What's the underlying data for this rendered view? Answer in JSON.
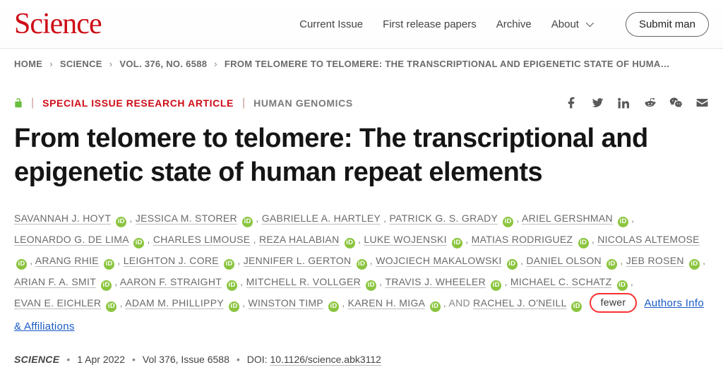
{
  "brand": "Science",
  "nav": {
    "current_issue": "Current Issue",
    "first_release": "First release papers",
    "archive": "Archive",
    "about": "About",
    "submit": "Submit man"
  },
  "breadcrumbs": {
    "home": "HOME",
    "journal": "SCIENCE",
    "volume": "VOL. 376, NO. 6588",
    "title": "FROM TELOMERE TO TELOMERE: THE TRANSCRIPTIONAL AND EPIGENETIC STATE OF HUMA…"
  },
  "tags": {
    "article_type": "SPECIAL ISSUE RESEARCH ARTICLE",
    "subject": "HUMAN GENOMICS"
  },
  "title": "From telomere to telomere: The transcriptional and epigenetic state of human repeat elements",
  "authors": [
    {
      "name": "SAVANNAH J. HOYT",
      "orcid": true
    },
    {
      "name": "JESSICA M. STORER",
      "orcid": true
    },
    {
      "name": "GABRIELLE A. HARTLEY",
      "orcid": false
    },
    {
      "name": "PATRICK G. S. GRADY",
      "orcid": true
    },
    {
      "name": "ARIEL GERSHMAN",
      "orcid": true
    },
    {
      "name": "LEONARDO G. DE LIMA",
      "orcid": true
    },
    {
      "name": "CHARLES LIMOUSE",
      "orcid": false
    },
    {
      "name": "REZA HALABIAN",
      "orcid": true
    },
    {
      "name": "LUKE WOJENSKI",
      "orcid": true
    },
    {
      "name": "MATIAS RODRIGUEZ",
      "orcid": true
    },
    {
      "name": "NICOLAS ALTEMOSE",
      "orcid": true
    },
    {
      "name": "ARANG RHIE",
      "orcid": true
    },
    {
      "name": "LEIGHTON J. CORE",
      "orcid": true
    },
    {
      "name": "JENNIFER L. GERTON",
      "orcid": true
    },
    {
      "name": "WOJCIECH MAKALOWSKI",
      "orcid": true
    },
    {
      "name": "DANIEL OLSON",
      "orcid": true
    },
    {
      "name": "JEB ROSEN",
      "orcid": true
    },
    {
      "name": "ARIAN F. A. SMIT",
      "orcid": true
    },
    {
      "name": "AARON F. STRAIGHT",
      "orcid": true
    },
    {
      "name": "MITCHELL R. VOLLGER",
      "orcid": true
    },
    {
      "name": "TRAVIS J. WHEELER",
      "orcid": true
    },
    {
      "name": "MICHAEL C. SCHATZ",
      "orcid": true
    },
    {
      "name": "EVAN E. EICHLER",
      "orcid": true
    },
    {
      "name": "ADAM M. PHILLIPPY",
      "orcid": true
    },
    {
      "name": "WINSTON TIMP",
      "orcid": true
    },
    {
      "name": "KAREN H. MIGA",
      "orcid": true
    }
  ],
  "last_author_prefix": "AND ",
  "last_author": {
    "name": "RACHEL J. O'NEILL",
    "orcid": true
  },
  "fewer_label": "fewer",
  "affiliations_label": "Authors Info & Affiliations",
  "meta": {
    "journal": "SCIENCE",
    "date": "1 Apr 2022",
    "issue": "Vol 376, Issue 6588",
    "doi_label": "DOI: ",
    "doi": "10.1126/science.abk3112"
  },
  "colors": {
    "brand": "#ce0c16",
    "orcid": "#8bc53f",
    "link": "#1859c6",
    "fewer_border": "#fa3131"
  }
}
